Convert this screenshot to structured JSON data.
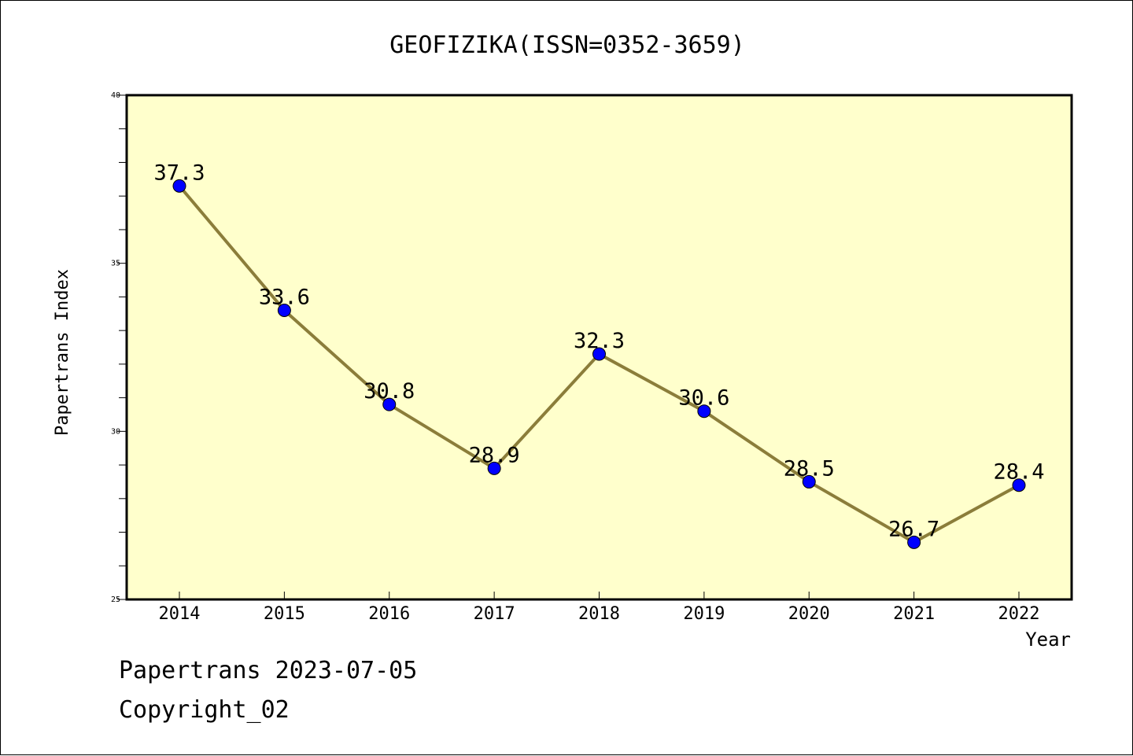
{
  "chart_data": {
    "type": "line",
    "title": "GEOFIZIKA(ISSN=0352-3659)",
    "xlabel": "Year",
    "ylabel": "Papertrans Index",
    "x": [
      "2014",
      "2015",
      "2016",
      "2017",
      "2018",
      "2019",
      "2020",
      "2021",
      "2022"
    ],
    "series": [
      {
        "values": [
          37.3,
          33.6,
          30.8,
          28.9,
          32.3,
          30.6,
          28.5,
          26.7,
          28.4
        ]
      }
    ],
    "data_labels": [
      "37.3",
      "33.6",
      "30.8",
      "28.9",
      "32.3",
      "30.6",
      "28.5",
      "26.7",
      "28.4"
    ],
    "ylim": [
      25,
      40
    ],
    "yticks": [
      "25",
      "30",
      "35",
      "40"
    ],
    "grid": false,
    "legend": "none",
    "colors": {
      "plot_background": "#ffffcc",
      "line": "#8b7d3a",
      "marker": "#0000ff"
    }
  },
  "footer": {
    "date_text": "Papertrans 2023-07-05",
    "copyright_text": "Copyright_02"
  }
}
